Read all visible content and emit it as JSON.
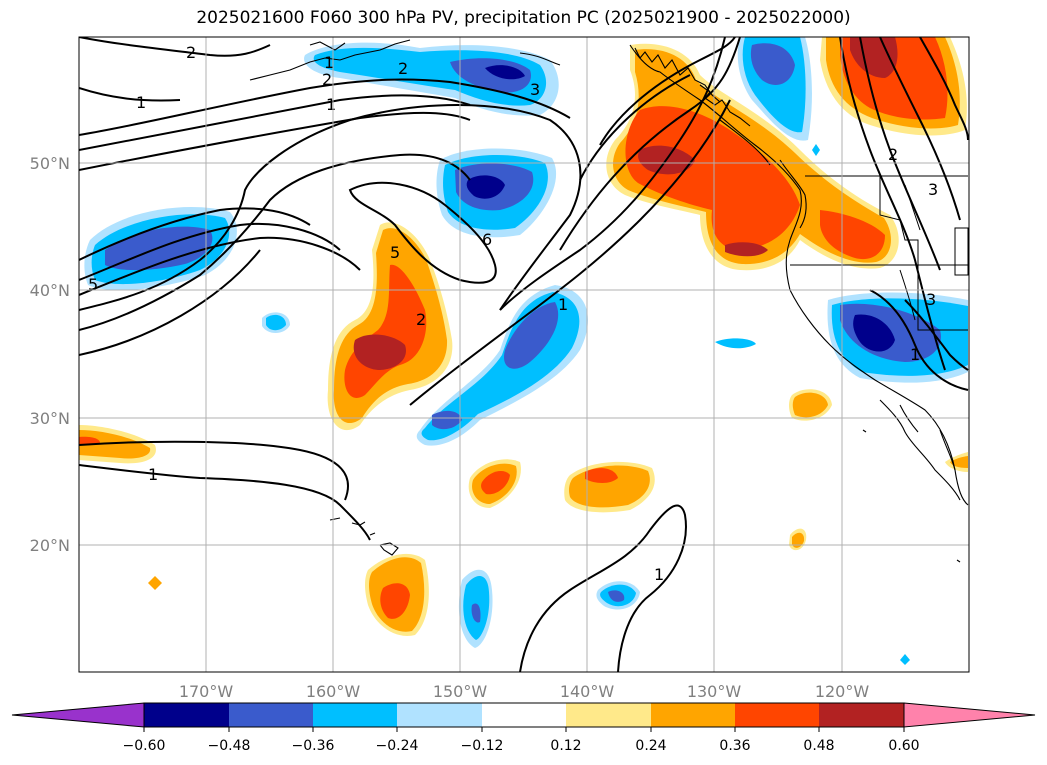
{
  "title": "2025021600 F060 300 hPa PV, precipitation PC (2025021900 - 2025022000)",
  "map": {
    "lon_labels": [
      "170°W",
      "160°W",
      "150°W",
      "140°W",
      "130°W",
      "120°W"
    ],
    "lat_labels": [
      "50°N",
      "40°N",
      "30°N",
      "20°N"
    ],
    "contour_labels": [
      "2",
      "1",
      "2",
      "1",
      "3",
      "5",
      "2",
      "6",
      "1",
      "5",
      "2",
      "1",
      "1",
      "1",
      "2",
      "3",
      "3",
      "1"
    ]
  },
  "colorbar": {
    "ticks": [
      "−0.60",
      "−0.48",
      "−0.36",
      "−0.24",
      "−0.12",
      "0.12",
      "0.24",
      "0.36",
      "0.48",
      "0.60"
    ],
    "colors": [
      "#9932cc",
      "#00008b",
      "#3a5bcc",
      "#00bfff",
      "#b0e2ff",
      "#ffffff",
      "#ffe98a",
      "#ffa500",
      "#ff4500",
      "#b22222",
      "#ff82ab"
    ]
  }
}
